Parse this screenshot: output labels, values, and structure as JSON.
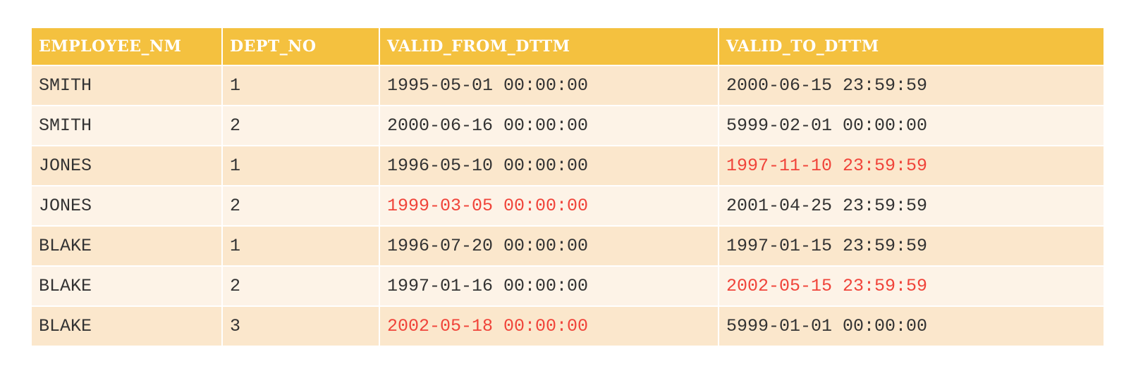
{
  "table": {
    "headers": [
      "EMPLOYEE_NM",
      "DEPT_NO",
      "VALID_FROM_DTTM",
      "VALID_TO_DTTM"
    ],
    "highlight_color": "#f0443a",
    "header_color": "#f4c13f",
    "rows": [
      {
        "employee_nm": "SMITH",
        "dept_no": "1",
        "valid_from_dttm": "1995-05-01 00:00:00",
        "valid_to_dttm": "2000-06-15 23:59:59",
        "from_highlighted": false,
        "to_highlighted": false
      },
      {
        "employee_nm": "SMITH",
        "dept_no": "2",
        "valid_from_dttm": "2000-06-16 00:00:00",
        "valid_to_dttm": "5999-02-01 00:00:00",
        "from_highlighted": false,
        "to_highlighted": false
      },
      {
        "employee_nm": "JONES",
        "dept_no": "1",
        "valid_from_dttm": "1996-05-10 00:00:00",
        "valid_to_dttm": "1997-11-10 23:59:59",
        "from_highlighted": false,
        "to_highlighted": true
      },
      {
        "employee_nm": "JONES",
        "dept_no": "2",
        "valid_from_dttm": "1999-03-05 00:00:00",
        "valid_to_dttm": "2001-04-25 23:59:59",
        "from_highlighted": true,
        "to_highlighted": false
      },
      {
        "employee_nm": "BLAKE",
        "dept_no": "1",
        "valid_from_dttm": "1996-07-20 00:00:00",
        "valid_to_dttm": "1997-01-15 23:59:59",
        "from_highlighted": false,
        "to_highlighted": false
      },
      {
        "employee_nm": "BLAKE",
        "dept_no": "2",
        "valid_from_dttm": "1997-01-16 00:00:00",
        "valid_to_dttm": "2002-05-15 23:59:59",
        "from_highlighted": false,
        "to_highlighted": true
      },
      {
        "employee_nm": "BLAKE",
        "dept_no": "3",
        "valid_from_dttm": "2002-05-18 00:00:00",
        "valid_to_dttm": "5999-01-01 00:00:00",
        "from_highlighted": true,
        "to_highlighted": false
      }
    ]
  }
}
